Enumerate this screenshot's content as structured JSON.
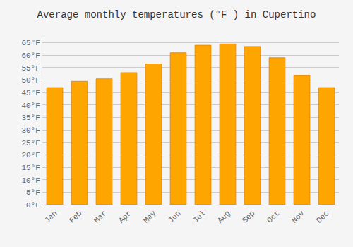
{
  "chart_data": {
    "type": "bar",
    "title": "Average monthly temperatures (°F ) in Cupertino",
    "categories": [
      "Jan",
      "Feb",
      "Mar",
      "Apr",
      "May",
      "Jun",
      "Jul",
      "Aug",
      "Sep",
      "Oct",
      "Nov",
      "Dec"
    ],
    "values": [
      47,
      49.5,
      50.5,
      53,
      56.5,
      61,
      64,
      64.5,
      63.5,
      59,
      52,
      47
    ],
    "color": "#FFA500",
    "ylim": [
      0,
      68
    ],
    "yticks": [
      {
        "value": 0,
        "label": "0°F"
      },
      {
        "value": 5,
        "label": "5°F"
      },
      {
        "value": 10,
        "label": "10°F"
      },
      {
        "value": 15,
        "label": "15°F"
      },
      {
        "value": 20,
        "label": "20°F"
      },
      {
        "value": 25,
        "label": "25°F"
      },
      {
        "value": 30,
        "label": "30°F"
      },
      {
        "value": 35,
        "label": "35°F"
      },
      {
        "value": 40,
        "label": "40°F"
      },
      {
        "value": 45,
        "label": "45°F"
      },
      {
        "value": 50,
        "label": "50°F"
      },
      {
        "value": 55,
        "label": "55°F"
      },
      {
        "value": 60,
        "label": "60°F"
      },
      {
        "value": 65,
        "label": "65°F"
      }
    ],
    "grid": true
  }
}
